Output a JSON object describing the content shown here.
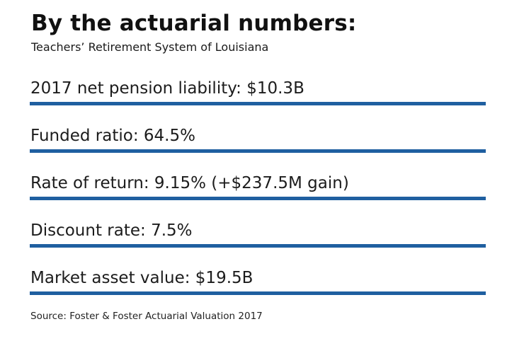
{
  "header": {
    "title": "By the actuarial numbers:",
    "subtitle": "Teachers’ Retirement System of Louisiana"
  },
  "stats": [
    {
      "label": "2017 net pension liability: $10.3B"
    },
    {
      "label": "Funded ratio: 64.5%"
    },
    {
      "label": "Rate of return: 9.15% (+$237.5M gain)"
    },
    {
      "label": "Discount rate: 7.5%"
    },
    {
      "label": "Market asset value: $19.5B"
    }
  ],
  "footer": {
    "source": "Source: Foster & Foster Actuarial Valuation 2017"
  },
  "colors": {
    "rule": "#1f5fa0",
    "text": "#1a1a1a",
    "background": "#ffffff"
  }
}
